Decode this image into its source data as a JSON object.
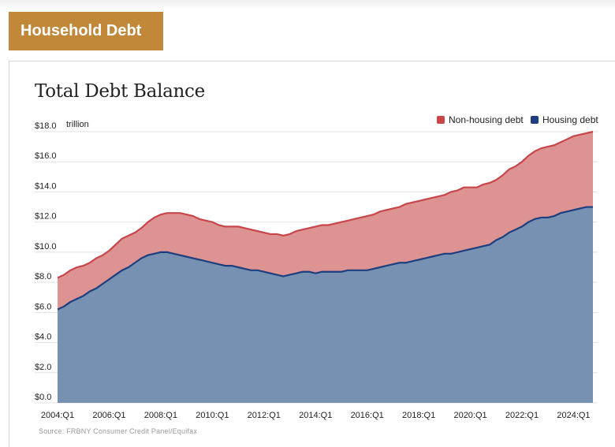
{
  "header": {
    "title": "Household Debt"
  },
  "chart_data": {
    "type": "area",
    "title": "Total Debt Balance",
    "y_unit": "trillion",
    "ylim": [
      0,
      18
    ],
    "y_ticks": [
      "$0.0",
      "$2.0",
      "$4.0",
      "$6.0",
      "$8.0",
      "$10.0",
      "$12.0",
      "$14.0",
      "$16.0",
      "$18.0"
    ],
    "x_ticks": [
      "2004:Q1",
      "2006:Q1",
      "2008:Q1",
      "2010:Q1",
      "2012:Q1",
      "2014:Q1",
      "2016:Q1",
      "2018:Q1",
      "2020:Q1",
      "2022:Q1",
      "2024:Q1"
    ],
    "legend_position": "top-right",
    "grid": true,
    "colors": {
      "non_housing": "#dc9392",
      "non_housing_line": "#c8464a",
      "housing": "#7791b2",
      "housing_line": "#1d3f7f"
    },
    "x": [
      "2004:Q1",
      "2004:Q2",
      "2004:Q3",
      "2004:Q4",
      "2005:Q1",
      "2005:Q2",
      "2005:Q3",
      "2005:Q4",
      "2006:Q1",
      "2006:Q2",
      "2006:Q3",
      "2006:Q4",
      "2007:Q1",
      "2007:Q2",
      "2007:Q3",
      "2007:Q4",
      "2008:Q1",
      "2008:Q2",
      "2008:Q3",
      "2008:Q4",
      "2009:Q1",
      "2009:Q2",
      "2009:Q3",
      "2009:Q4",
      "2010:Q1",
      "2010:Q2",
      "2010:Q3",
      "2010:Q4",
      "2011:Q1",
      "2011:Q2",
      "2011:Q3",
      "2011:Q4",
      "2012:Q1",
      "2012:Q2",
      "2012:Q3",
      "2012:Q4",
      "2013:Q1",
      "2013:Q2",
      "2013:Q3",
      "2013:Q4",
      "2014:Q1",
      "2014:Q2",
      "2014:Q3",
      "2014:Q4",
      "2015:Q1",
      "2015:Q2",
      "2015:Q3",
      "2015:Q4",
      "2016:Q1",
      "2016:Q2",
      "2016:Q3",
      "2016:Q4",
      "2017:Q1",
      "2017:Q2",
      "2017:Q3",
      "2017:Q4",
      "2018:Q1",
      "2018:Q2",
      "2018:Q3",
      "2018:Q4",
      "2019:Q1",
      "2019:Q2",
      "2019:Q3",
      "2019:Q4",
      "2020:Q1",
      "2020:Q2",
      "2020:Q3",
      "2020:Q4",
      "2021:Q1",
      "2021:Q2",
      "2021:Q3",
      "2021:Q4",
      "2022:Q1",
      "2022:Q2",
      "2022:Q3",
      "2022:Q4",
      "2023:Q1",
      "2023:Q2",
      "2023:Q3",
      "2023:Q4",
      "2024:Q1",
      "2024:Q2",
      "2024:Q3",
      "2024:Q4"
    ],
    "series": [
      {
        "name": "Non-housing debt",
        "values": [
          8.3,
          8.5,
          8.8,
          9.0,
          9.1,
          9.3,
          9.6,
          9.8,
          10.1,
          10.5,
          10.9,
          11.1,
          11.3,
          11.6,
          12.0,
          12.3,
          12.5,
          12.6,
          12.6,
          12.6,
          12.5,
          12.4,
          12.2,
          12.1,
          12.0,
          11.8,
          11.7,
          11.7,
          11.7,
          11.6,
          11.5,
          11.4,
          11.3,
          11.2,
          11.2,
          11.1,
          11.2,
          11.4,
          11.5,
          11.6,
          11.7,
          11.8,
          11.8,
          11.9,
          12.0,
          12.1,
          12.2,
          12.3,
          12.4,
          12.5,
          12.7,
          12.8,
          12.9,
          13.0,
          13.2,
          13.3,
          13.4,
          13.5,
          13.6,
          13.7,
          13.8,
          14.0,
          14.1,
          14.3,
          14.3,
          14.3,
          14.5,
          14.6,
          14.8,
          15.1,
          15.5,
          15.7,
          16.0,
          16.4,
          16.7,
          16.9,
          17.0,
          17.1,
          17.3,
          17.5,
          17.7,
          17.8,
          17.9,
          18.0
        ]
      },
      {
        "name": "Housing debt",
        "values": [
          6.2,
          6.4,
          6.7,
          6.9,
          7.1,
          7.4,
          7.6,
          7.9,
          8.2,
          8.5,
          8.8,
          9.0,
          9.3,
          9.6,
          9.8,
          9.9,
          10.0,
          10.0,
          9.9,
          9.8,
          9.7,
          9.6,
          9.5,
          9.4,
          9.3,
          9.2,
          9.1,
          9.1,
          9.0,
          8.9,
          8.8,
          8.8,
          8.7,
          8.6,
          8.5,
          8.4,
          8.5,
          8.6,
          8.7,
          8.7,
          8.6,
          8.7,
          8.7,
          8.7,
          8.7,
          8.8,
          8.8,
          8.8,
          8.8,
          8.9,
          9.0,
          9.1,
          9.2,
          9.3,
          9.3,
          9.4,
          9.5,
          9.6,
          9.7,
          9.8,
          9.9,
          9.9,
          10.0,
          10.1,
          10.2,
          10.3,
          10.4,
          10.5,
          10.8,
          11.0,
          11.3,
          11.5,
          11.7,
          12.0,
          12.2,
          12.3,
          12.3,
          12.4,
          12.6,
          12.7,
          12.8,
          12.9,
          13.0,
          13.0
        ]
      }
    ],
    "source": "Source: FRBNY Consumer Credit Panel/Equifax"
  }
}
